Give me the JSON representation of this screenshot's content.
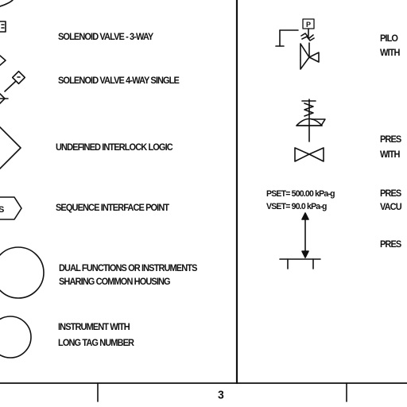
{
  "legend": {
    "left": [
      {
        "id": "solenoid-3way",
        "text": "SOLENOID VALVE - 3-WAY"
      },
      {
        "id": "solenoid-4way",
        "text": "SOLENOID VALVE 4-WAY SINGLE"
      },
      {
        "id": "interlock",
        "text": "UNDEFINED INTERLOCK LOGIC"
      },
      {
        "id": "sequence",
        "text": "SEQUENCE INTERFACE POINT"
      },
      {
        "id": "dual-line1",
        "text": "DUAL FUNCTIONS OR INSTRUMENTS"
      },
      {
        "id": "dual-line2",
        "text": "SHARING COMMON HOUSING"
      },
      {
        "id": "longtag-line1",
        "text": "INSTRUMENT WITH"
      },
      {
        "id": "longtag-line2",
        "text": "LONG TAG NUMBER"
      }
    ],
    "right": [
      {
        "id": "pilot-line1",
        "text": "PILO"
      },
      {
        "id": "pilot-line2",
        "text": "WITH"
      },
      {
        "id": "pres-line1",
        "text": "PRES"
      },
      {
        "id": "pres-line2",
        "text": "WITH"
      },
      {
        "id": "pres2-line1",
        "text": "PRES"
      },
      {
        "id": "pres2-line2",
        "text": "VACU"
      },
      {
        "id": "pres3-line1",
        "text": "PRES"
      }
    ],
    "setpoints": {
      "pset": "PSET= 500.00 kPa-g",
      "vset": "VSET= 90.0 kPa-g"
    },
    "symbol_letters": {
      "pilot_box": "P",
      "sequence_partial": "S"
    }
  },
  "page_number": "3"
}
